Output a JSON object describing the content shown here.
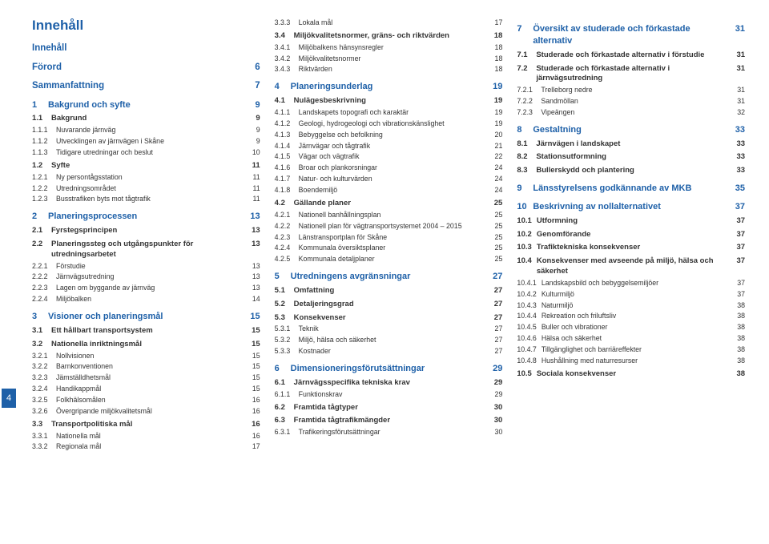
{
  "page_number_side": "4",
  "title": "Innehåll",
  "colors": {
    "accent": "#1e60a8",
    "text": "#333333",
    "bg": "#ffffff"
  },
  "columns": [
    [
      {
        "lvl": 0,
        "num": "",
        "label": "Innehåll",
        "pg": ""
      },
      {
        "lvl": 0,
        "num": "",
        "label": "Förord",
        "pg": "6"
      },
      {
        "lvl": 0,
        "num": "",
        "label": "Sammanfattning",
        "pg": "7"
      },
      {
        "lvl": 1,
        "num": "1",
        "label": "Bakgrund och syfte",
        "pg": "9"
      },
      {
        "lvl": 2,
        "num": "1.1",
        "label": "Bakgrund",
        "pg": "9"
      },
      {
        "lvl": 3,
        "num": "1.1.1",
        "label": "Nuvarande järnväg",
        "pg": "9"
      },
      {
        "lvl": 3,
        "num": "1.1.2",
        "label": "Utvecklingen av järnvägen i Skåne",
        "pg": "9"
      },
      {
        "lvl": 3,
        "num": "1.1.3",
        "label": "Tidigare utredningar och beslut",
        "pg": "10"
      },
      {
        "lvl": 2,
        "num": "1.2",
        "label": "Syfte",
        "pg": "11"
      },
      {
        "lvl": 3,
        "num": "1.2.1",
        "label": "Ny persontågsstation",
        "pg": "11"
      },
      {
        "lvl": 3,
        "num": "1.2.2",
        "label": "Utredningsområdet",
        "pg": "11"
      },
      {
        "lvl": 3,
        "num": "1.2.3",
        "label": "Busstrafiken byts mot tågtrafik",
        "pg": "11"
      },
      {
        "lvl": 1,
        "num": "2",
        "label": "Planeringsprocessen",
        "pg": "13"
      },
      {
        "lvl": 2,
        "num": "2.1",
        "label": "Fyrstegsprincipen",
        "pg": "13"
      },
      {
        "lvl": 2,
        "num": "2.2",
        "label": "Planeringssteg och utgångspunkter för utredningsarbetet",
        "pg": "13"
      },
      {
        "lvl": 3,
        "num": "2.2.1",
        "label": "Förstudie",
        "pg": "13"
      },
      {
        "lvl": 3,
        "num": "2.2.2",
        "label": "Järnvägsutredning",
        "pg": "13"
      },
      {
        "lvl": 3,
        "num": "2.2.3",
        "label": "Lagen om byggande av järnväg",
        "pg": "13"
      },
      {
        "lvl": 3,
        "num": "2.2.4",
        "label": "Miljöbalken",
        "pg": "14"
      },
      {
        "lvl": 1,
        "num": "3",
        "label": "Visioner och planeringsmål",
        "pg": "15"
      },
      {
        "lvl": 2,
        "num": "3.1",
        "label": "Ett hållbart transportsystem",
        "pg": "15"
      },
      {
        "lvl": 2,
        "num": "3.2",
        "label": "Nationella inriktningsmål",
        "pg": "15"
      },
      {
        "lvl": 3,
        "num": "3.2.1",
        "label": "Nollvisionen",
        "pg": "15"
      },
      {
        "lvl": 3,
        "num": "3.2.2",
        "label": "Barnkonventionen",
        "pg": "15"
      },
      {
        "lvl": 3,
        "num": "3.2.3",
        "label": "Jämställdhetsmål",
        "pg": "15"
      },
      {
        "lvl": 3,
        "num": "3.2.4",
        "label": "Handikappmål",
        "pg": "15"
      },
      {
        "lvl": 3,
        "num": "3.2.5",
        "label": "Folkhälsomålen",
        "pg": "16"
      },
      {
        "lvl": 3,
        "num": "3.2.6",
        "label": "Övergripande miljökvalitetsmål",
        "pg": "16"
      },
      {
        "lvl": 2,
        "num": "3.3",
        "label": "Transportpolitiska mål",
        "pg": "16"
      },
      {
        "lvl": 3,
        "num": "3.3.1",
        "label": "Nationella mål",
        "pg": "16"
      },
      {
        "lvl": 3,
        "num": "3.3.2",
        "label": "Regionala mål",
        "pg": "17"
      }
    ],
    [
      {
        "lvl": 3,
        "num": "3.3.3",
        "label": "Lokala mål",
        "pg": "17"
      },
      {
        "lvl": 2,
        "num": "3.4",
        "label": "Miljökvalitetsnormer, gräns- och riktvärden",
        "pg": "18"
      },
      {
        "lvl": 3,
        "num": "3.4.1",
        "label": "Miljöbalkens hänsynsregler",
        "pg": "18"
      },
      {
        "lvl": 3,
        "num": "3.4.2",
        "label": "Miljökvalitetsnormer",
        "pg": "18"
      },
      {
        "lvl": 3,
        "num": "3.4.3",
        "label": "Riktvärden",
        "pg": "18"
      },
      {
        "lvl": 1,
        "num": "4",
        "label": "Planeringsunderlag",
        "pg": "19"
      },
      {
        "lvl": 2,
        "num": "4.1",
        "label": "Nulägesbeskrivning",
        "pg": "19"
      },
      {
        "lvl": 3,
        "num": "4.1.1",
        "label": "Landskapets topografi och karaktär",
        "pg": "19"
      },
      {
        "lvl": 3,
        "num": "4.1.2",
        "label": "Geologi, hydrogeologi och vibrationskänslighet",
        "pg": "19"
      },
      {
        "lvl": 3,
        "num": "4.1.3",
        "label": "Bebyggelse och befolkning",
        "pg": "20"
      },
      {
        "lvl": 3,
        "num": "4.1.4",
        "label": "Järnvägar och tågtrafik",
        "pg": "21"
      },
      {
        "lvl": 3,
        "num": "4.1.5",
        "label": "Vägar och vägtrafik",
        "pg": "22"
      },
      {
        "lvl": 3,
        "num": "4.1.6",
        "label": "Broar och plankorsningar",
        "pg": "24"
      },
      {
        "lvl": 3,
        "num": "4.1.7",
        "label": "Natur- och kulturvärden",
        "pg": "24"
      },
      {
        "lvl": 3,
        "num": "4.1.8",
        "label": "Boendemiljö",
        "pg": "24"
      },
      {
        "lvl": 2,
        "num": "4.2",
        "label": "Gällande planer",
        "pg": "25"
      },
      {
        "lvl": 3,
        "num": "4.2.1",
        "label": "Nationell banhållningsplan",
        "pg": "25"
      },
      {
        "lvl": 3,
        "num": "4.2.2",
        "label": "Nationell plan för vägtransportsystemet  2004 – 2015",
        "pg": "25"
      },
      {
        "lvl": 3,
        "num": "4.2.3",
        "label": "Länstransportplan för Skåne",
        "pg": "25"
      },
      {
        "lvl": 3,
        "num": "4.2.4",
        "label": "Kommunala översiktsplaner",
        "pg": "25"
      },
      {
        "lvl": 3,
        "num": "4.2.5",
        "label": "Kommunala detaljplaner",
        "pg": "25"
      },
      {
        "lvl": 1,
        "num": "5",
        "label": "Utredningens avgränsningar",
        "pg": "27"
      },
      {
        "lvl": 2,
        "num": "5.1",
        "label": "Omfattning",
        "pg": "27"
      },
      {
        "lvl": 2,
        "num": "5.2",
        "label": "Detaljeringsgrad",
        "pg": "27"
      },
      {
        "lvl": 2,
        "num": "5.3",
        "label": "Konsekvenser",
        "pg": "27"
      },
      {
        "lvl": 3,
        "num": "5.3.1",
        "label": "Teknik",
        "pg": "27"
      },
      {
        "lvl": 3,
        "num": "5.3.2",
        "label": "Miljö, hälsa och säkerhet",
        "pg": "27"
      },
      {
        "lvl": 3,
        "num": "5.3.3",
        "label": "Kostnader",
        "pg": "27"
      },
      {
        "lvl": 1,
        "num": "6",
        "label": "Dimensioneringsförutsättningar",
        "pg": "29"
      },
      {
        "lvl": 2,
        "num": "6.1",
        "label": "Järnvägsspecifika tekniska krav",
        "pg": "29"
      },
      {
        "lvl": 3,
        "num": "6.1.1",
        "label": "Funktionskrav",
        "pg": "29"
      },
      {
        "lvl": 2,
        "num": "6.2",
        "label": "Framtida tågtyper",
        "pg": "30"
      },
      {
        "lvl": 2,
        "num": "6.3",
        "label": "Framtida tågtrafikmängder",
        "pg": "30"
      },
      {
        "lvl": 3,
        "num": "6.3.1",
        "label": "Trafikeringsförutsättningar",
        "pg": "30"
      }
    ],
    [
      {
        "lvl": 1,
        "num": "7",
        "label": "Översikt av studerade och förkastade alternativ",
        "pg": "31"
      },
      {
        "lvl": 2,
        "num": "7.1",
        "label": "Studerade och förkastade alternativ i förstudie",
        "pg": "31"
      },
      {
        "lvl": 2,
        "num": "7.2",
        "label": "Studerade och förkastade alternativ i järnvägsutredning",
        "pg": "31"
      },
      {
        "lvl": 3,
        "num": "7.2.1",
        "label": "Trelleborg nedre",
        "pg": "31"
      },
      {
        "lvl": 3,
        "num": "7.2.2",
        "label": "Sandmöllan",
        "pg": "31"
      },
      {
        "lvl": 3,
        "num": "7.2.3",
        "label": "Vipeängen",
        "pg": "32"
      },
      {
        "lvl": 1,
        "num": "8",
        "label": "Gestaltning",
        "pg": "33"
      },
      {
        "lvl": 2,
        "num": "8.1",
        "label": "Järnvägen i landskapet",
        "pg": "33"
      },
      {
        "lvl": 2,
        "num": "8.2",
        "label": "Stationsutformning",
        "pg": "33"
      },
      {
        "lvl": 2,
        "num": "8.3",
        "label": "Bullerskydd och plantering",
        "pg": "33"
      },
      {
        "lvl": 1,
        "num": "9",
        "label": "Länsstyrelsens godkännande av MKB",
        "pg": "35"
      },
      {
        "lvl": 1,
        "num": "10",
        "label": "Beskrivning av nollalternativet",
        "pg": "37"
      },
      {
        "lvl": 2,
        "num": "10.1",
        "label": "Utformning",
        "pg": "37"
      },
      {
        "lvl": 2,
        "num": "10.2",
        "label": "Genomförande",
        "pg": "37"
      },
      {
        "lvl": 2,
        "num": "10.3",
        "label": "Trafiktekniska konsekvenser",
        "pg": "37"
      },
      {
        "lvl": 2,
        "num": "10.4",
        "label": "Konsekvenser med avseende på miljö, hälsa och säkerhet",
        "pg": "37"
      },
      {
        "lvl": 3,
        "num": "10.4.1",
        "label": "Landskapsbild och bebyggelsemiljöer",
        "pg": "37"
      },
      {
        "lvl": 3,
        "num": "10.4.2",
        "label": "Kulturmiljö",
        "pg": "37"
      },
      {
        "lvl": 3,
        "num": "10.4.3",
        "label": "Naturmiljö",
        "pg": "38"
      },
      {
        "lvl": 3,
        "num": "10.4.4",
        "label": "Rekreation och friluftsliv",
        "pg": "38"
      },
      {
        "lvl": 3,
        "num": "10.4.5",
        "label": "Buller och vibrationer",
        "pg": "38"
      },
      {
        "lvl": 3,
        "num": "10.4.6",
        "label": "Hälsa och säkerhet",
        "pg": "38"
      },
      {
        "lvl": 3,
        "num": "10.4.7",
        "label": "Tillgänglighet och barriäreffekter",
        "pg": "38"
      },
      {
        "lvl": 3,
        "num": "10.4.8",
        "label": "Hushållning med naturresurser",
        "pg": "38"
      },
      {
        "lvl": 2,
        "num": "10.5",
        "label": "Sociala konsekvenser",
        "pg": "38"
      }
    ]
  ]
}
